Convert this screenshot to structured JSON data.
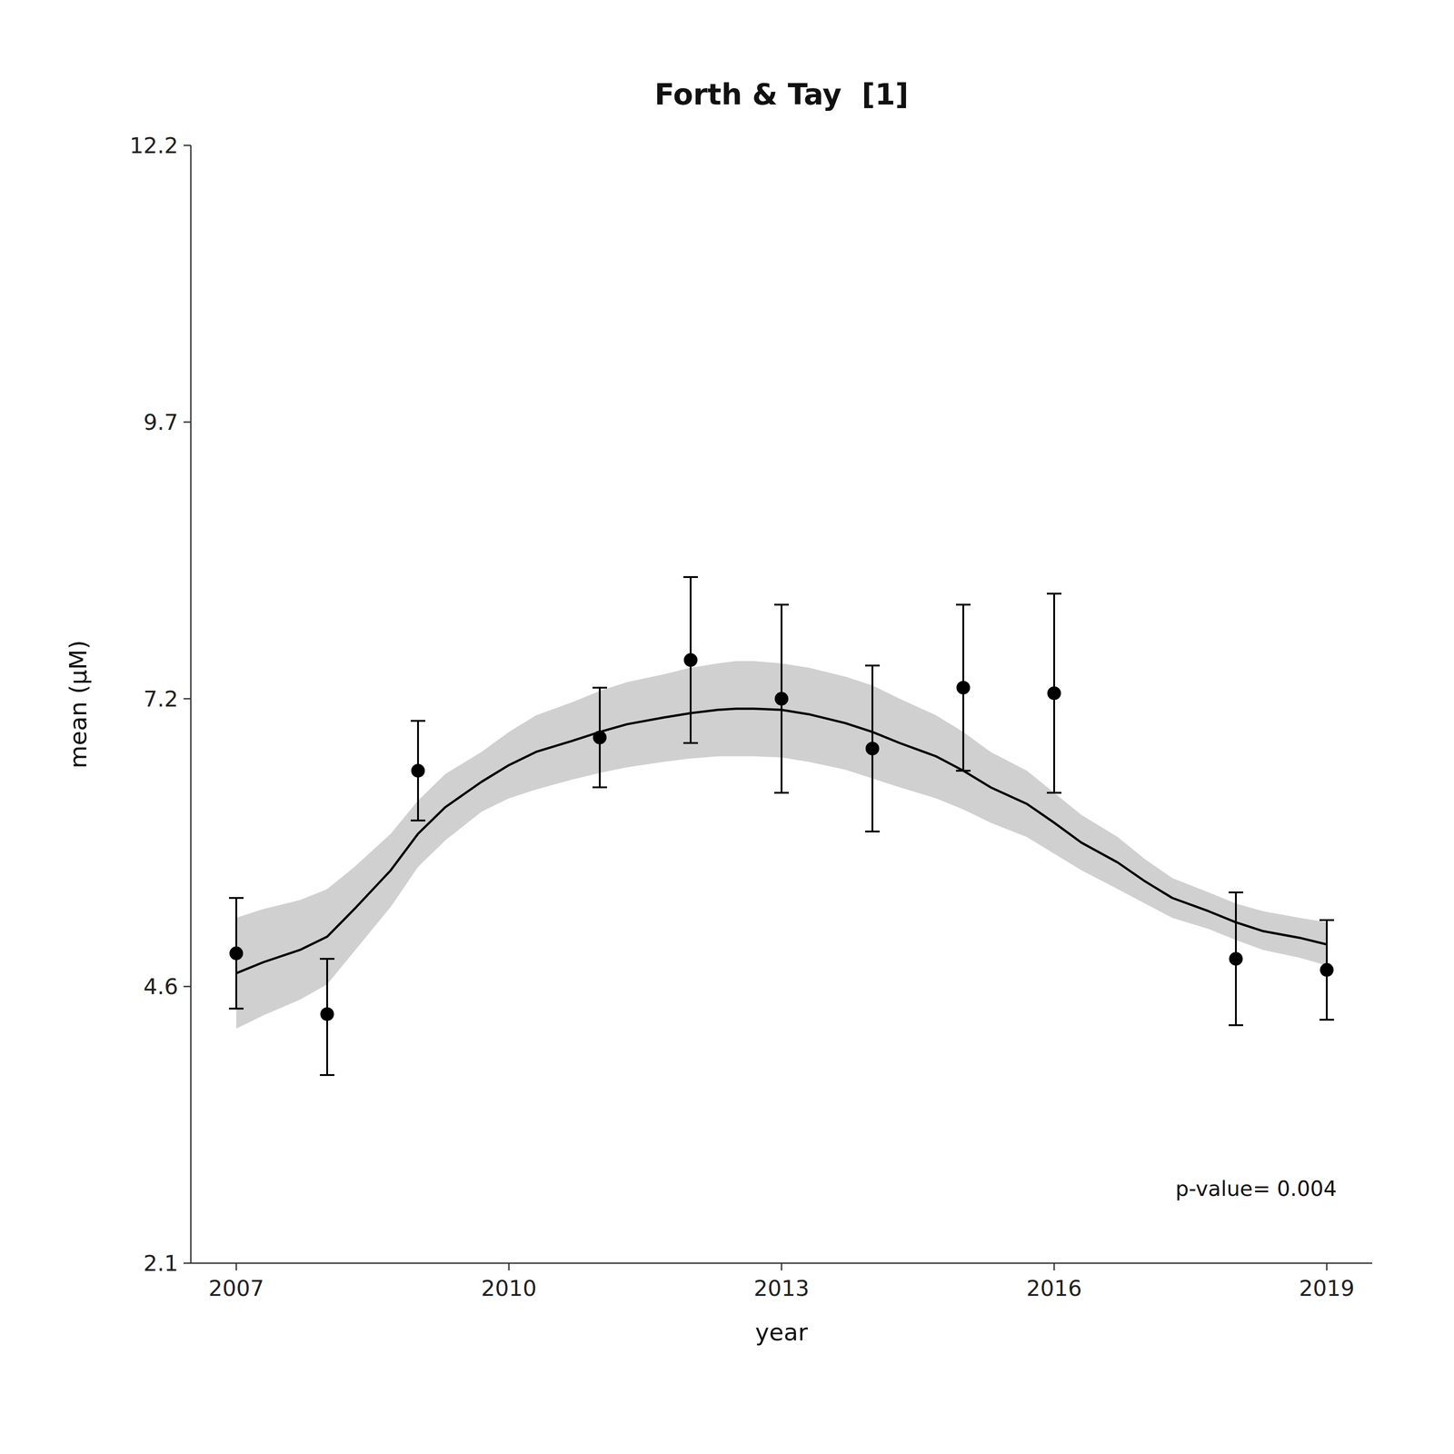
{
  "chart_data": {
    "type": "scatter",
    "title": "Forth & Tay  [1]",
    "xlabel": "year",
    "ylabel": "mean (μM)",
    "annotation": "p-value= 0.004",
    "xlim": [
      2006.5,
      2019.5
    ],
    "ylim": [
      2.1,
      12.2
    ],
    "xticks": [
      2007,
      2010,
      2013,
      2016,
      2019
    ],
    "yticks": [
      2.1,
      4.6,
      7.2,
      9.7,
      12.2
    ],
    "grid": false,
    "series": [
      {
        "type": "area",
        "color": "#b0b0b0",
        "x": [
          2007.0,
          2007.3,
          2007.7,
          2008.0,
          2008.3,
          2008.7,
          2009.0,
          2009.3,
          2009.7,
          2010.0,
          2010.3,
          2010.7,
          2011.0,
          2011.3,
          2011.7,
          2012.0,
          2012.3,
          2012.5,
          2012.7,
          2013.0,
          2013.3,
          2013.7,
          2014.0,
          2014.3,
          2014.7,
          2015.0,
          2015.3,
          2015.7,
          2016.0,
          2016.3,
          2016.7,
          2017.0,
          2017.3,
          2017.7,
          2018.0,
          2018.3,
          2018.7,
          2019.0
        ],
        "lower": [
          4.22,
          4.34,
          4.48,
          4.62,
          4.92,
          5.32,
          5.68,
          5.92,
          6.18,
          6.3,
          6.38,
          6.47,
          6.53,
          6.58,
          6.63,
          6.66,
          6.68,
          6.68,
          6.68,
          6.67,
          6.63,
          6.56,
          6.48,
          6.4,
          6.3,
          6.2,
          6.08,
          5.95,
          5.8,
          5.65,
          5.48,
          5.35,
          5.22,
          5.12,
          5.02,
          4.93,
          4.86,
          4.79
        ],
        "upper": [
          5.22,
          5.3,
          5.38,
          5.48,
          5.68,
          5.98,
          6.28,
          6.52,
          6.72,
          6.9,
          7.05,
          7.17,
          7.27,
          7.35,
          7.42,
          7.48,
          7.52,
          7.54,
          7.54,
          7.52,
          7.48,
          7.4,
          7.32,
          7.2,
          7.05,
          6.9,
          6.72,
          6.55,
          6.35,
          6.15,
          5.95,
          5.75,
          5.58,
          5.45,
          5.35,
          5.28,
          5.22,
          5.18
        ]
      },
      {
        "type": "line",
        "color": "#000000",
        "x": [
          2007.0,
          2007.3,
          2007.7,
          2008.0,
          2008.3,
          2008.7,
          2009.0,
          2009.3,
          2009.7,
          2010.0,
          2010.3,
          2010.7,
          2011.0,
          2011.3,
          2011.7,
          2012.0,
          2012.3,
          2012.5,
          2012.7,
          2013.0,
          2013.3,
          2013.7,
          2014.0,
          2014.3,
          2014.7,
          2015.0,
          2015.3,
          2015.7,
          2016.0,
          2016.3,
          2016.7,
          2017.0,
          2017.3,
          2017.7,
          2018.0,
          2018.3,
          2018.7,
          2019.0
        ],
        "values": [
          4.72,
          4.82,
          4.93,
          5.05,
          5.3,
          5.65,
          5.98,
          6.22,
          6.45,
          6.6,
          6.72,
          6.82,
          6.9,
          6.97,
          7.03,
          7.07,
          7.1,
          7.11,
          7.11,
          7.1,
          7.06,
          6.98,
          6.9,
          6.8,
          6.68,
          6.55,
          6.4,
          6.25,
          6.08,
          5.9,
          5.72,
          5.55,
          5.4,
          5.28,
          5.18,
          5.1,
          5.04,
          4.98
        ]
      },
      {
        "type": "scatter",
        "color": "#000000",
        "marker": "circle",
        "x": [
          2007,
          2008,
          2009,
          2011,
          2012,
          2013,
          2014,
          2015,
          2016,
          2018,
          2019
        ],
        "values": [
          4.9,
          4.35,
          6.55,
          6.85,
          7.55,
          7.2,
          6.75,
          7.3,
          7.25,
          4.85,
          4.75
        ],
        "err_lo": [
          0.5,
          0.55,
          0.45,
          0.45,
          0.75,
          0.85,
          0.75,
          0.75,
          0.9,
          0.6,
          0.45
        ],
        "err_hi": [
          0.5,
          0.5,
          0.45,
          0.45,
          0.75,
          0.85,
          0.75,
          0.75,
          0.9,
          0.6,
          0.45
        ]
      }
    ]
  }
}
